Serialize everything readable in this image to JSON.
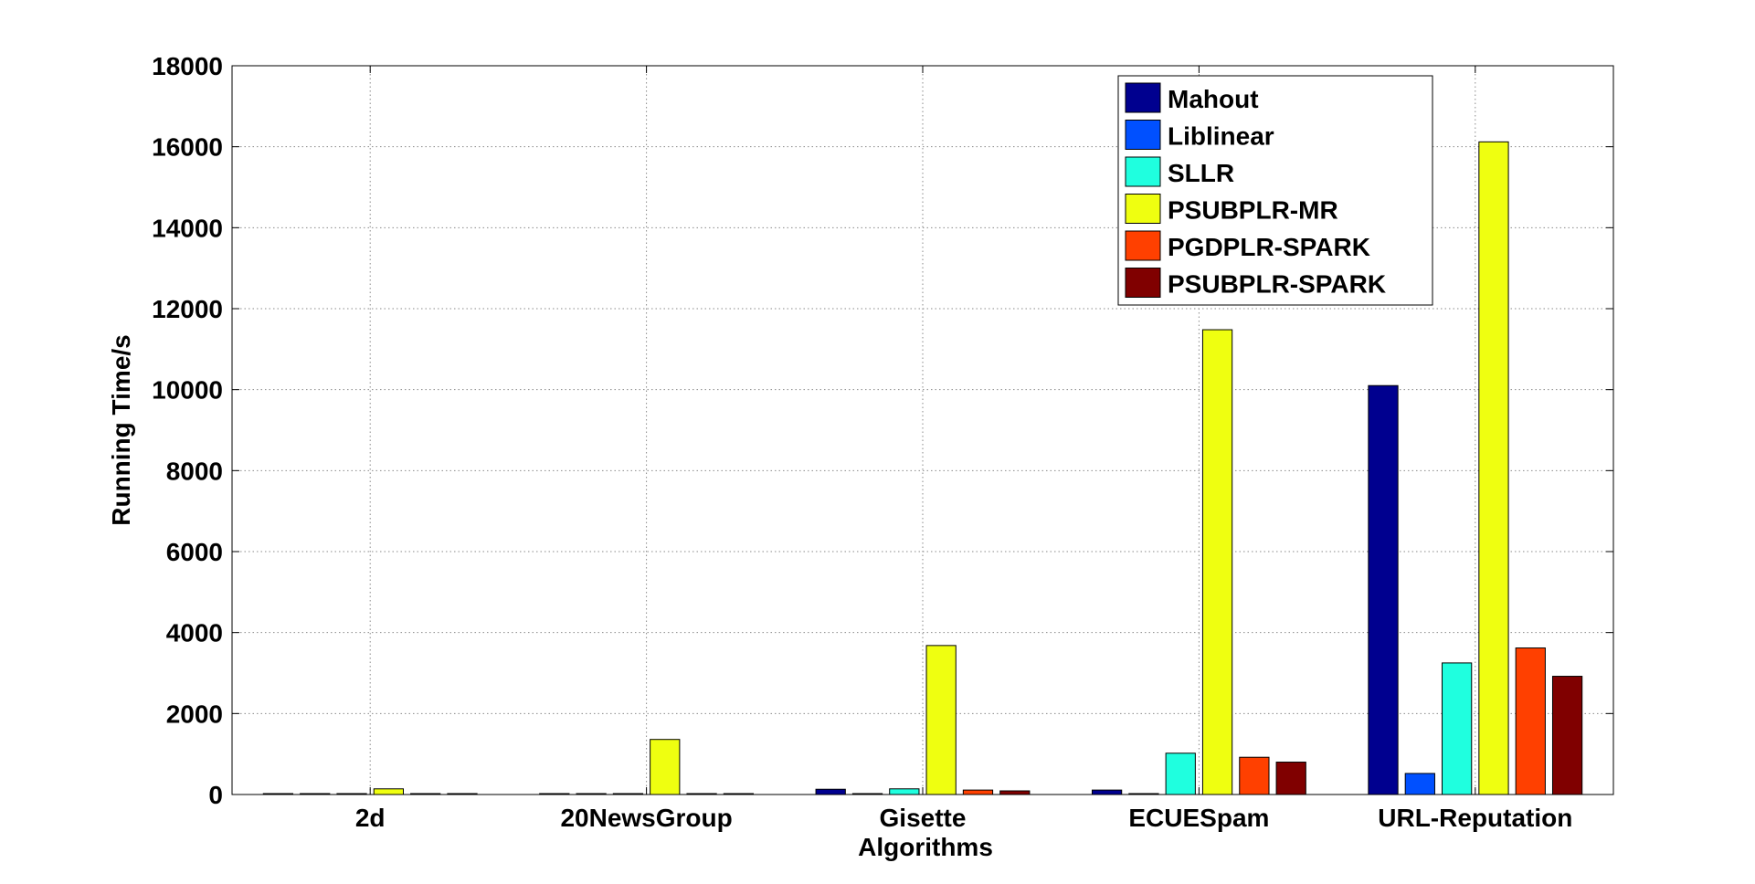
{
  "chart_data": {
    "type": "bar",
    "title": "",
    "xlabel": "Algorithms",
    "ylabel": "Running Time/s",
    "ylim": [
      0,
      18000
    ],
    "yticks": [
      0,
      2000,
      4000,
      6000,
      8000,
      10000,
      12000,
      14000,
      16000,
      18000
    ],
    "grid": true,
    "legend_position": "top-right",
    "categories": [
      "2d",
      "20NewsGroup",
      "Gisette",
      "ECUESpam",
      "URL-Reputation"
    ],
    "series": [
      {
        "name": "Mahout",
        "color": "#00008f",
        "values": [
          5,
          3,
          130,
          110,
          10100
        ]
      },
      {
        "name": "Liblinear",
        "color": "#0050ff",
        "values": [
          5,
          3,
          10,
          10,
          520
        ]
      },
      {
        "name": "SLLR",
        "color": "#1fffdf",
        "values": [
          5,
          3,
          140,
          1020,
          3250
        ]
      },
      {
        "name": "PSUBPLR-MR",
        "color": "#efff10",
        "values": [
          140,
          1360,
          3680,
          11480,
          16120
        ]
      },
      {
        "name": "PGDPLR-SPARK",
        "color": "#ff4000",
        "values": [
          5,
          3,
          110,
          920,
          3620
        ]
      },
      {
        "name": "PSUBPLR-SPARK",
        "color": "#800000",
        "values": [
          5,
          3,
          90,
          800,
          2920
        ]
      }
    ]
  }
}
